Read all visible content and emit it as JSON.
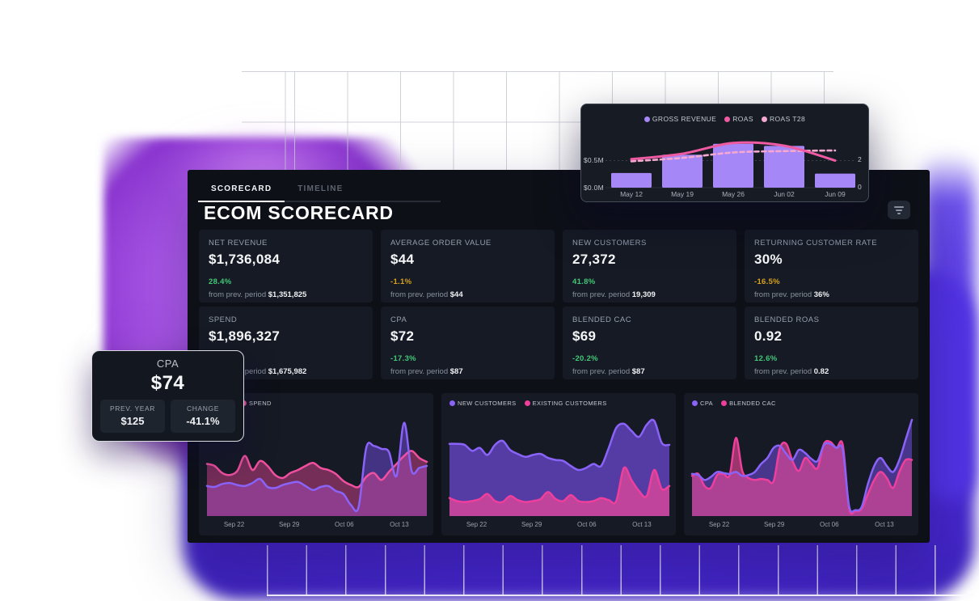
{
  "header": {
    "tabs": [
      {
        "label": "SCORECARD",
        "active": true
      },
      {
        "label": "TIMELINE",
        "active": false
      }
    ],
    "title": "ECOM SCORECARD",
    "filter_icon": "filter-icon"
  },
  "kpis": [
    {
      "label": "NET REVENUE",
      "value": "$1,736,084",
      "change": "28.4%",
      "change_class": "green",
      "prev_label": "from prev. period",
      "prev_value": "$1,351,825"
    },
    {
      "label": "AVERAGE ORDER VALUE",
      "value": "$44",
      "change": "-1.1%",
      "change_class": "yellow",
      "prev_label": "from prev. period",
      "prev_value": "$44"
    },
    {
      "label": "NEW CUSTOMERS",
      "value": "27,372",
      "change": "41.8%",
      "change_class": "green",
      "prev_label": "from prev. period",
      "prev_value": "19,309"
    },
    {
      "label": "RETURNING CUSTOMER RATE",
      "value": "30%",
      "change": "-16.5%",
      "change_class": "yellow",
      "prev_label": "from prev. period",
      "prev_value": "36%"
    },
    {
      "label": "SPEND",
      "value": "$1,896,327",
      "change": "",
      "change_class": "",
      "prev_label": "from prev. period",
      "prev_value": "$1,675,982"
    },
    {
      "label": "CPA",
      "value": "$72",
      "change": "-17.3%",
      "change_class": "green",
      "prev_label": "from prev. period",
      "prev_value": "$87"
    },
    {
      "label": "BLENDED CAC",
      "value": "$69",
      "change": "-20.2%",
      "change_class": "green",
      "prev_label": "from prev. period",
      "prev_value": "$87"
    },
    {
      "label": "BLENDED ROAS",
      "value": "0.92",
      "change": "12.6%",
      "change_class": "green",
      "prev_label": "from prev. period",
      "prev_value": "0.82"
    }
  ],
  "float_card": {
    "title": "CPA",
    "value": "$74",
    "boxes": [
      {
        "label": "PREV. YEAR",
        "value": "$125",
        "value_class": ""
      },
      {
        "label": "CHANGE",
        "value": "-41.1%",
        "value_class": "green"
      }
    ]
  },
  "colors": {
    "green": "#43c878",
    "yellow": "#d7a21c",
    "violet_glow": "#5331e4",
    "bar_purple": "#a687f8",
    "line_purple": "#8a63f8",
    "line_pink": "#f0509f"
  },
  "chart_data": [
    {
      "id": "revenue_roas",
      "type": "bar",
      "subtype": "bar+line combo",
      "categories": [
        "May 12",
        "May 19",
        "May 26",
        "Jun 02",
        "Jun 09"
      ],
      "series": [
        {
          "name": "GROSS REVENUE",
          "kind": "bar",
          "color": "#a687f8",
          "unit": "$M",
          "values": [
            0.27,
            0.61,
            0.81,
            0.77,
            0.26
          ]
        },
        {
          "name": "ROAS",
          "kind": "line",
          "color": "#ee5ba2",
          "values": [
            2.1,
            2.5,
            3.3,
            3.1,
            2.0
          ]
        },
        {
          "name": "ROAS T28",
          "kind": "line-dashed",
          "color": "#f5a8d0",
          "values": [
            1.95,
            2.2,
            2.6,
            2.7,
            2.75
          ]
        }
      ],
      "y_left_ticks": [
        "$0.5M",
        "$0.0M"
      ],
      "y_right_ticks": [
        "2",
        "0"
      ],
      "y_left_max": 1.12,
      "y_right_max": 4.48,
      "legend_position": "top-center",
      "grid": "dotted line at $0.5M / ROAS 2"
    },
    {
      "id": "spend",
      "type": "area",
      "x_ticks": [
        "Sep 22",
        "Sep 29",
        "Oct 06",
        "Oct 13"
      ],
      "ymax": 100,
      "legend_note": "first legend item obscured by floating CPA card",
      "series": [
        {
          "name": "",
          "color": "#8a63f8",
          "fill": "rgba(124,82,246,0.45)",
          "values": [
            30,
            29,
            32,
            33,
            31,
            30,
            33,
            37,
            29,
            28,
            31,
            33,
            34,
            30,
            26,
            29,
            30,
            25,
            22,
            11,
            9,
            68,
            70,
            67,
            64,
            40,
            93,
            45,
            48,
            50
          ]
        },
        {
          "name": "SPEND",
          "color": "#f0509f",
          "fill": "rgba(236,72,153,0.45)",
          "values": [
            52,
            50,
            43,
            41,
            45,
            60,
            46,
            55,
            50,
            41,
            38,
            43,
            46,
            50,
            53,
            48,
            46,
            42,
            35,
            31,
            29,
            39,
            43,
            36,
            44,
            52,
            60,
            65,
            58,
            54
          ]
        }
      ]
    },
    {
      "id": "customers",
      "type": "area",
      "x_ticks": [
        "Sep 22",
        "Sep 29",
        "Oct 06",
        "Oct 13"
      ],
      "ymax": 100,
      "series": [
        {
          "name": "NEW CUSTOMERS",
          "color": "#8a63f8",
          "fill": "rgba(124,82,246,0.62)",
          "values": [
            72,
            72,
            71,
            65,
            68,
            61,
            71,
            75,
            66,
            62,
            59,
            61,
            62,
            58,
            56,
            55,
            50,
            46,
            48,
            52,
            50,
            68,
            88,
            92,
            85,
            79,
            91,
            95,
            73,
            71
          ]
        },
        {
          "name": "EXISTING CUSTOMERS",
          "color": "#ee3f9c",
          "fill": "rgba(236,72,153,0.72)",
          "values": [
            18,
            15,
            14,
            15,
            17,
            22,
            15,
            14,
            20,
            16,
            14,
            15,
            17,
            24,
            17,
            15,
            21,
            15,
            14,
            15,
            18,
            16,
            15,
            48,
            36,
            25,
            20,
            46,
            27,
            30
          ]
        }
      ]
    },
    {
      "id": "cpa_cac",
      "type": "area",
      "x_ticks": [
        "Sep 22",
        "Sep 29",
        "Oct 06",
        "Oct 13"
      ],
      "ymax": 100,
      "series": [
        {
          "name": "CPA",
          "color": "#8a63f8",
          "fill": "rgba(124,82,246,0.5)",
          "values": [
            42,
            41,
            36,
            39,
            44,
            43,
            42,
            44,
            40,
            41,
            44,
            52,
            58,
            68,
            70,
            62,
            56,
            66,
            63,
            57,
            55,
            71,
            72,
            68,
            66,
            10,
            6,
            9,
            32,
            50,
            58,
            50,
            44,
            56,
            76,
            96
          ]
        },
        {
          "name": "BLENDED CAC",
          "color": "#ee3f9c",
          "fill": "rgba(236,72,153,0.62)",
          "values": [
            40,
            42,
            30,
            28,
            41,
            42,
            41,
            78,
            45,
            38,
            36,
            37,
            36,
            35,
            68,
            72,
            55,
            45,
            58,
            52,
            48,
            72,
            74,
            68,
            71,
            8,
            5,
            7,
            22,
            36,
            44,
            38,
            28,
            44,
            56,
            56
          ]
        }
      ]
    }
  ]
}
